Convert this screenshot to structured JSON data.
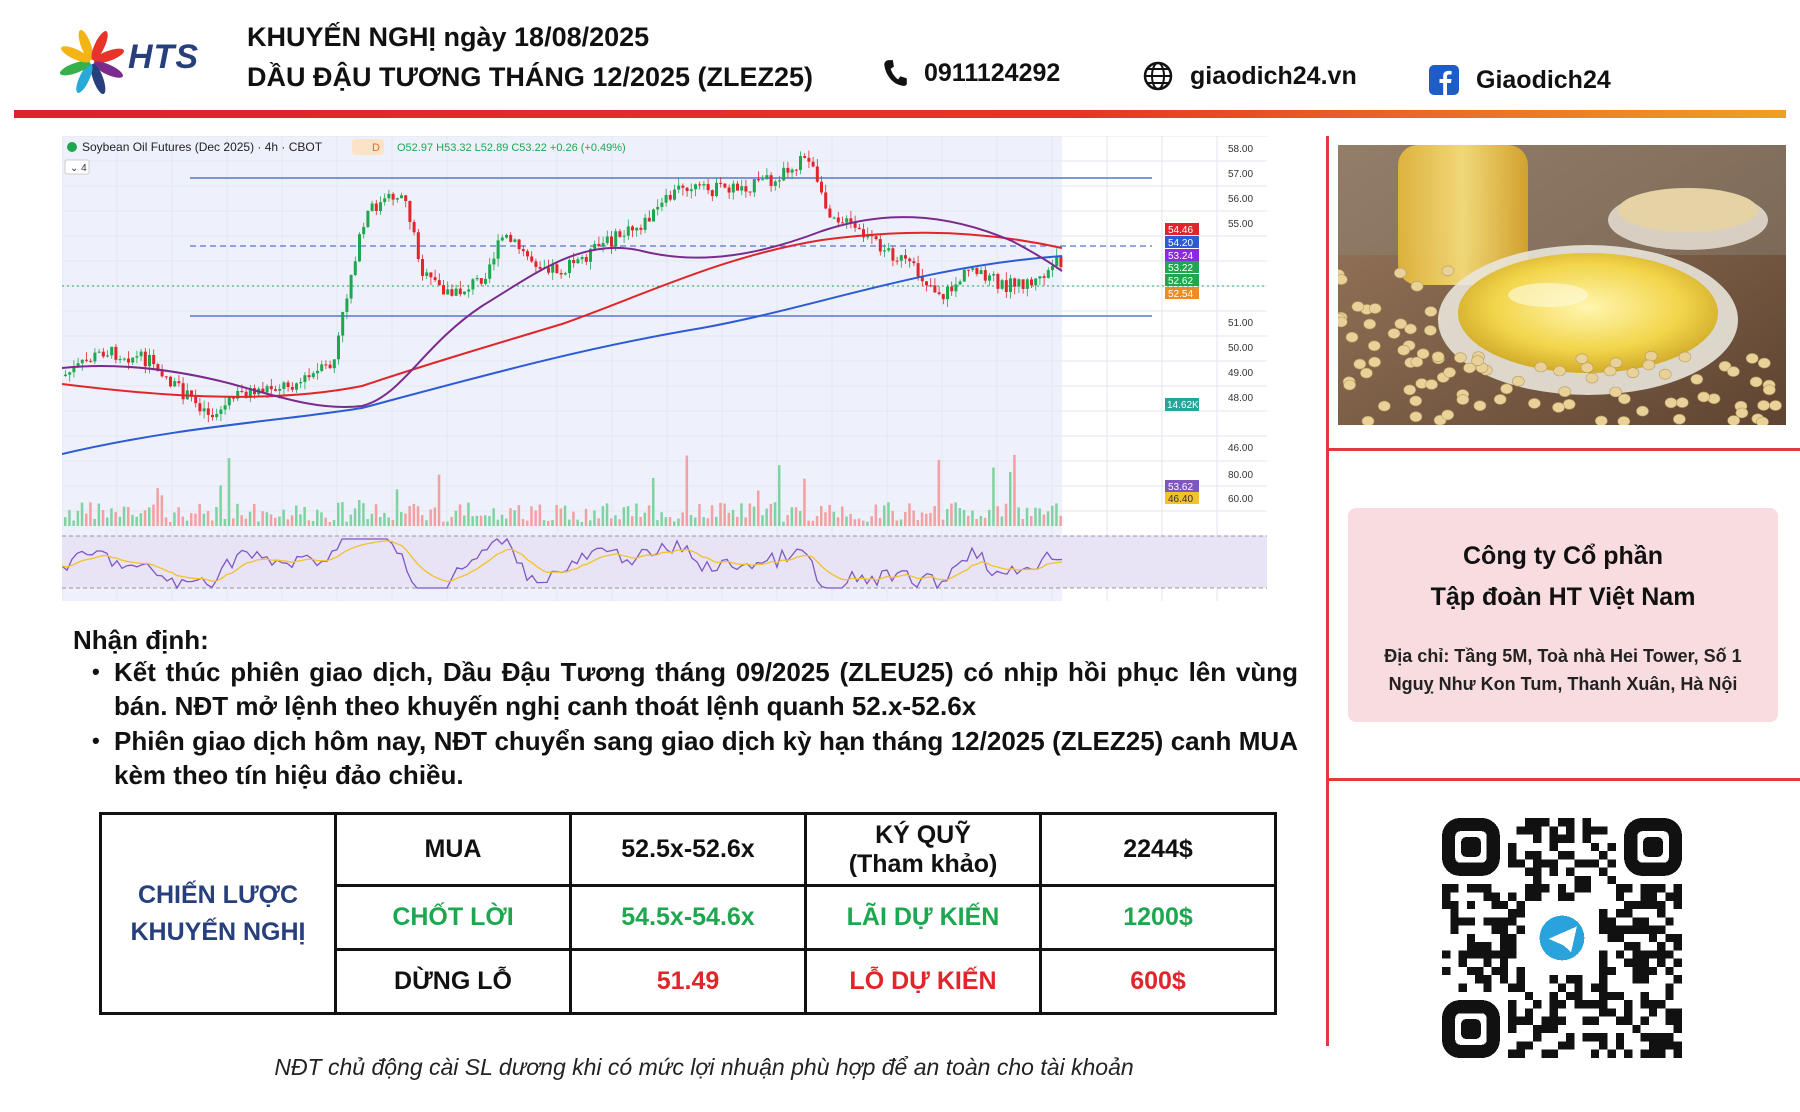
{
  "header": {
    "logo_text": "HTS",
    "title_line1": "KHUYẾN NGHỊ ngày 18/08/2025",
    "title_line2": "DẦU ĐẬU TƯƠNG THÁNG 12/2025 (ZLEZ25)",
    "phone": "0911124292",
    "website": "giaodich24.vn",
    "facebook": "Giaodich24",
    "icons": {
      "phone": "phone-icon",
      "web": "globe-icon",
      "facebook": "facebook-icon"
    }
  },
  "chart_panel": {
    "symbol_title": "Soybean Oil Futures (Dec 2025) · 4h · CBOT",
    "badge": "D",
    "ohlc_text": "O52.97 H53.32 L52.89 C53.22 +0.26 (+0.49%)",
    "indicator_count": "4",
    "price_ticks": [
      "58.00",
      "57.00",
      "56.00",
      "55.00",
      "51.00",
      "50.00",
      "49.00",
      "48.00",
      "46.00"
    ],
    "price_labels": [
      {
        "text": "54.46",
        "color": "#e0262b"
      },
      {
        "text": "54.20",
        "color": "#2d5bd6"
      },
      {
        "text": "53.24",
        "color": "#8a2be2"
      },
      {
        "text": "53.22",
        "color": "#1fa750"
      },
      {
        "text": "52.62",
        "color": "#1fa750"
      },
      {
        "text": "52.54",
        "color": "#f08a24"
      }
    ],
    "volume_label": "14.62K",
    "osc_ticks": [
      "80.00",
      "60.00"
    ],
    "osc_labels": [
      {
        "text": "53.62",
        "color": "#7e57c2"
      },
      {
        "text": "46.40",
        "color": "#f2c12e"
      }
    ]
  },
  "analysis": {
    "heading": "Nhận định:",
    "bullets": [
      "Kết thúc phiên giao dịch, Dầu Đậu Tương tháng 09/2025 (ZLEU25) có nhịp hồi phục lên vùng bán. NĐT mở lệnh theo khuyến nghị canh thoát lệnh quanh 52.x-52.6x",
      "Phiên giao dịch hôm nay, NĐT chuyển sang giao dịch kỳ hạn tháng 12/2025 (ZLEZ25) canh MUA kèm theo tín hiệu đảo chiều."
    ]
  },
  "strategy": {
    "label_line1": "CHIẾN LƯỢC",
    "label_line2": "KHUYẾN NGHỊ",
    "rows": [
      {
        "c1": "MUA",
        "c2": "52.5x-52.6x",
        "c3a": "KÝ QUỸ",
        "c3b": "(Tham khảo)",
        "c4": "2244$"
      },
      {
        "c1": "CHỐT LỜI",
        "c2": "54.5x-54.6x",
        "c3a": "LÃI DỰ KIẾN",
        "c3b": "",
        "c4": "1200$"
      },
      {
        "c1": "DỪNG LỖ",
        "c2": "51.49",
        "c3a": "LỖ DỰ KIẾN",
        "c3b": "",
        "c4": "600$"
      }
    ]
  },
  "note": "NĐT chủ động cài SL dương khi có mức lợi nhuận phù hợp để an toàn cho tài khoản",
  "company": {
    "name_line1": "Công ty Cổ phần",
    "name_line2": "Tập đoàn HT Việt Nam",
    "address_line1": "Địa chỉ: Tầng 5M, Toà nhà Hei Tower, Số 1",
    "address_line2": "Nguỵ Như Kon Tum, Thanh Xuân, Hà Nội"
  },
  "qr": {
    "center_icon": "telegram-icon"
  },
  "colors": {
    "accent_red": "#e23a3a",
    "buy_green": "#1fa750",
    "loss_red": "#e0262b",
    "brand_blue": "#27407d"
  }
}
